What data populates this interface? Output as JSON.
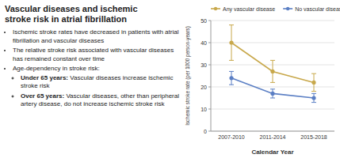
{
  "chart_data": {
    "type": "line",
    "title": "Vascular diseases and ischemic\nstroke risk in atrial fibrillation",
    "annotations": [
      "Ischemic stroke rates have decreased in patients with atrial fibrillation and vascular diseases",
      "The relative stroke risk associated with vascular diseases has remained constant over time",
      "Age-dependency in stroke risk:",
      [
        "Under 65 years: Vascular diseases increase ischemic stroke risk",
        "Over 65 years: Vascular diseases, other than peripheral artery disease, do not increase ischemic stroke risk"
      ]
    ],
    "categories": [
      "2007-2010",
      "2011-2014",
      "2015-2018"
    ],
    "series": [
      {
        "name": "Any vascular disease",
        "color": "#c8a84b",
        "marker": "circle",
        "values": [
          40,
          27,
          22
        ],
        "error_low": [
          8,
          5,
          4
        ],
        "error_high": [
          8,
          5,
          4
        ]
      },
      {
        "name": "No vascular disease",
        "color": "#5b7fc4",
        "marker": "circle",
        "values": [
          24,
          17,
          15
        ],
        "error_low": [
          3,
          2,
          2
        ],
        "error_high": [
          3,
          2,
          2
        ]
      }
    ],
    "xlabel": "Calendar Year",
    "ylabel": "Ischemic stroke rate (per 1000 person-years)",
    "ylim": [
      0,
      50
    ],
    "yticks": [
      0,
      10,
      20,
      30,
      40,
      50
    ],
    "grid": true,
    "legend": "top"
  }
}
